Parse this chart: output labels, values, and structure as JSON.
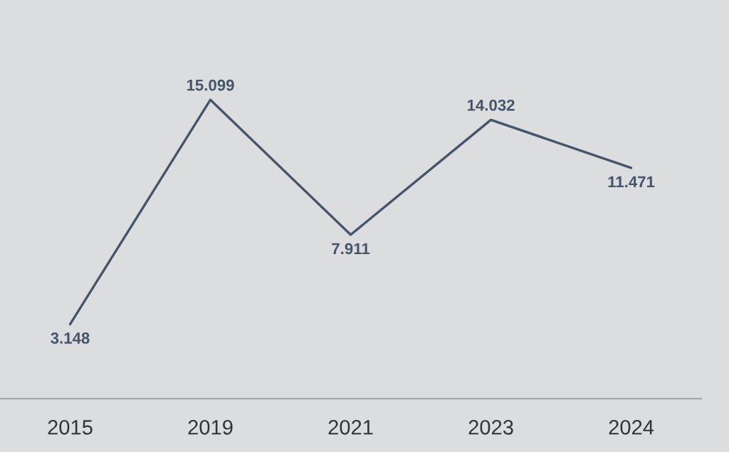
{
  "chart_data": {
    "type": "line",
    "categories": [
      "2015",
      "2019",
      "2021",
      "2023",
      "2024"
    ],
    "series": [
      {
        "color": "#44546a",
        "values": [
          3.148,
          15.099,
          7.911,
          14.032,
          11.471
        ]
      }
    ],
    "data_labels": true,
    "tick_labels": "x",
    "line_style": "solid"
  }
}
